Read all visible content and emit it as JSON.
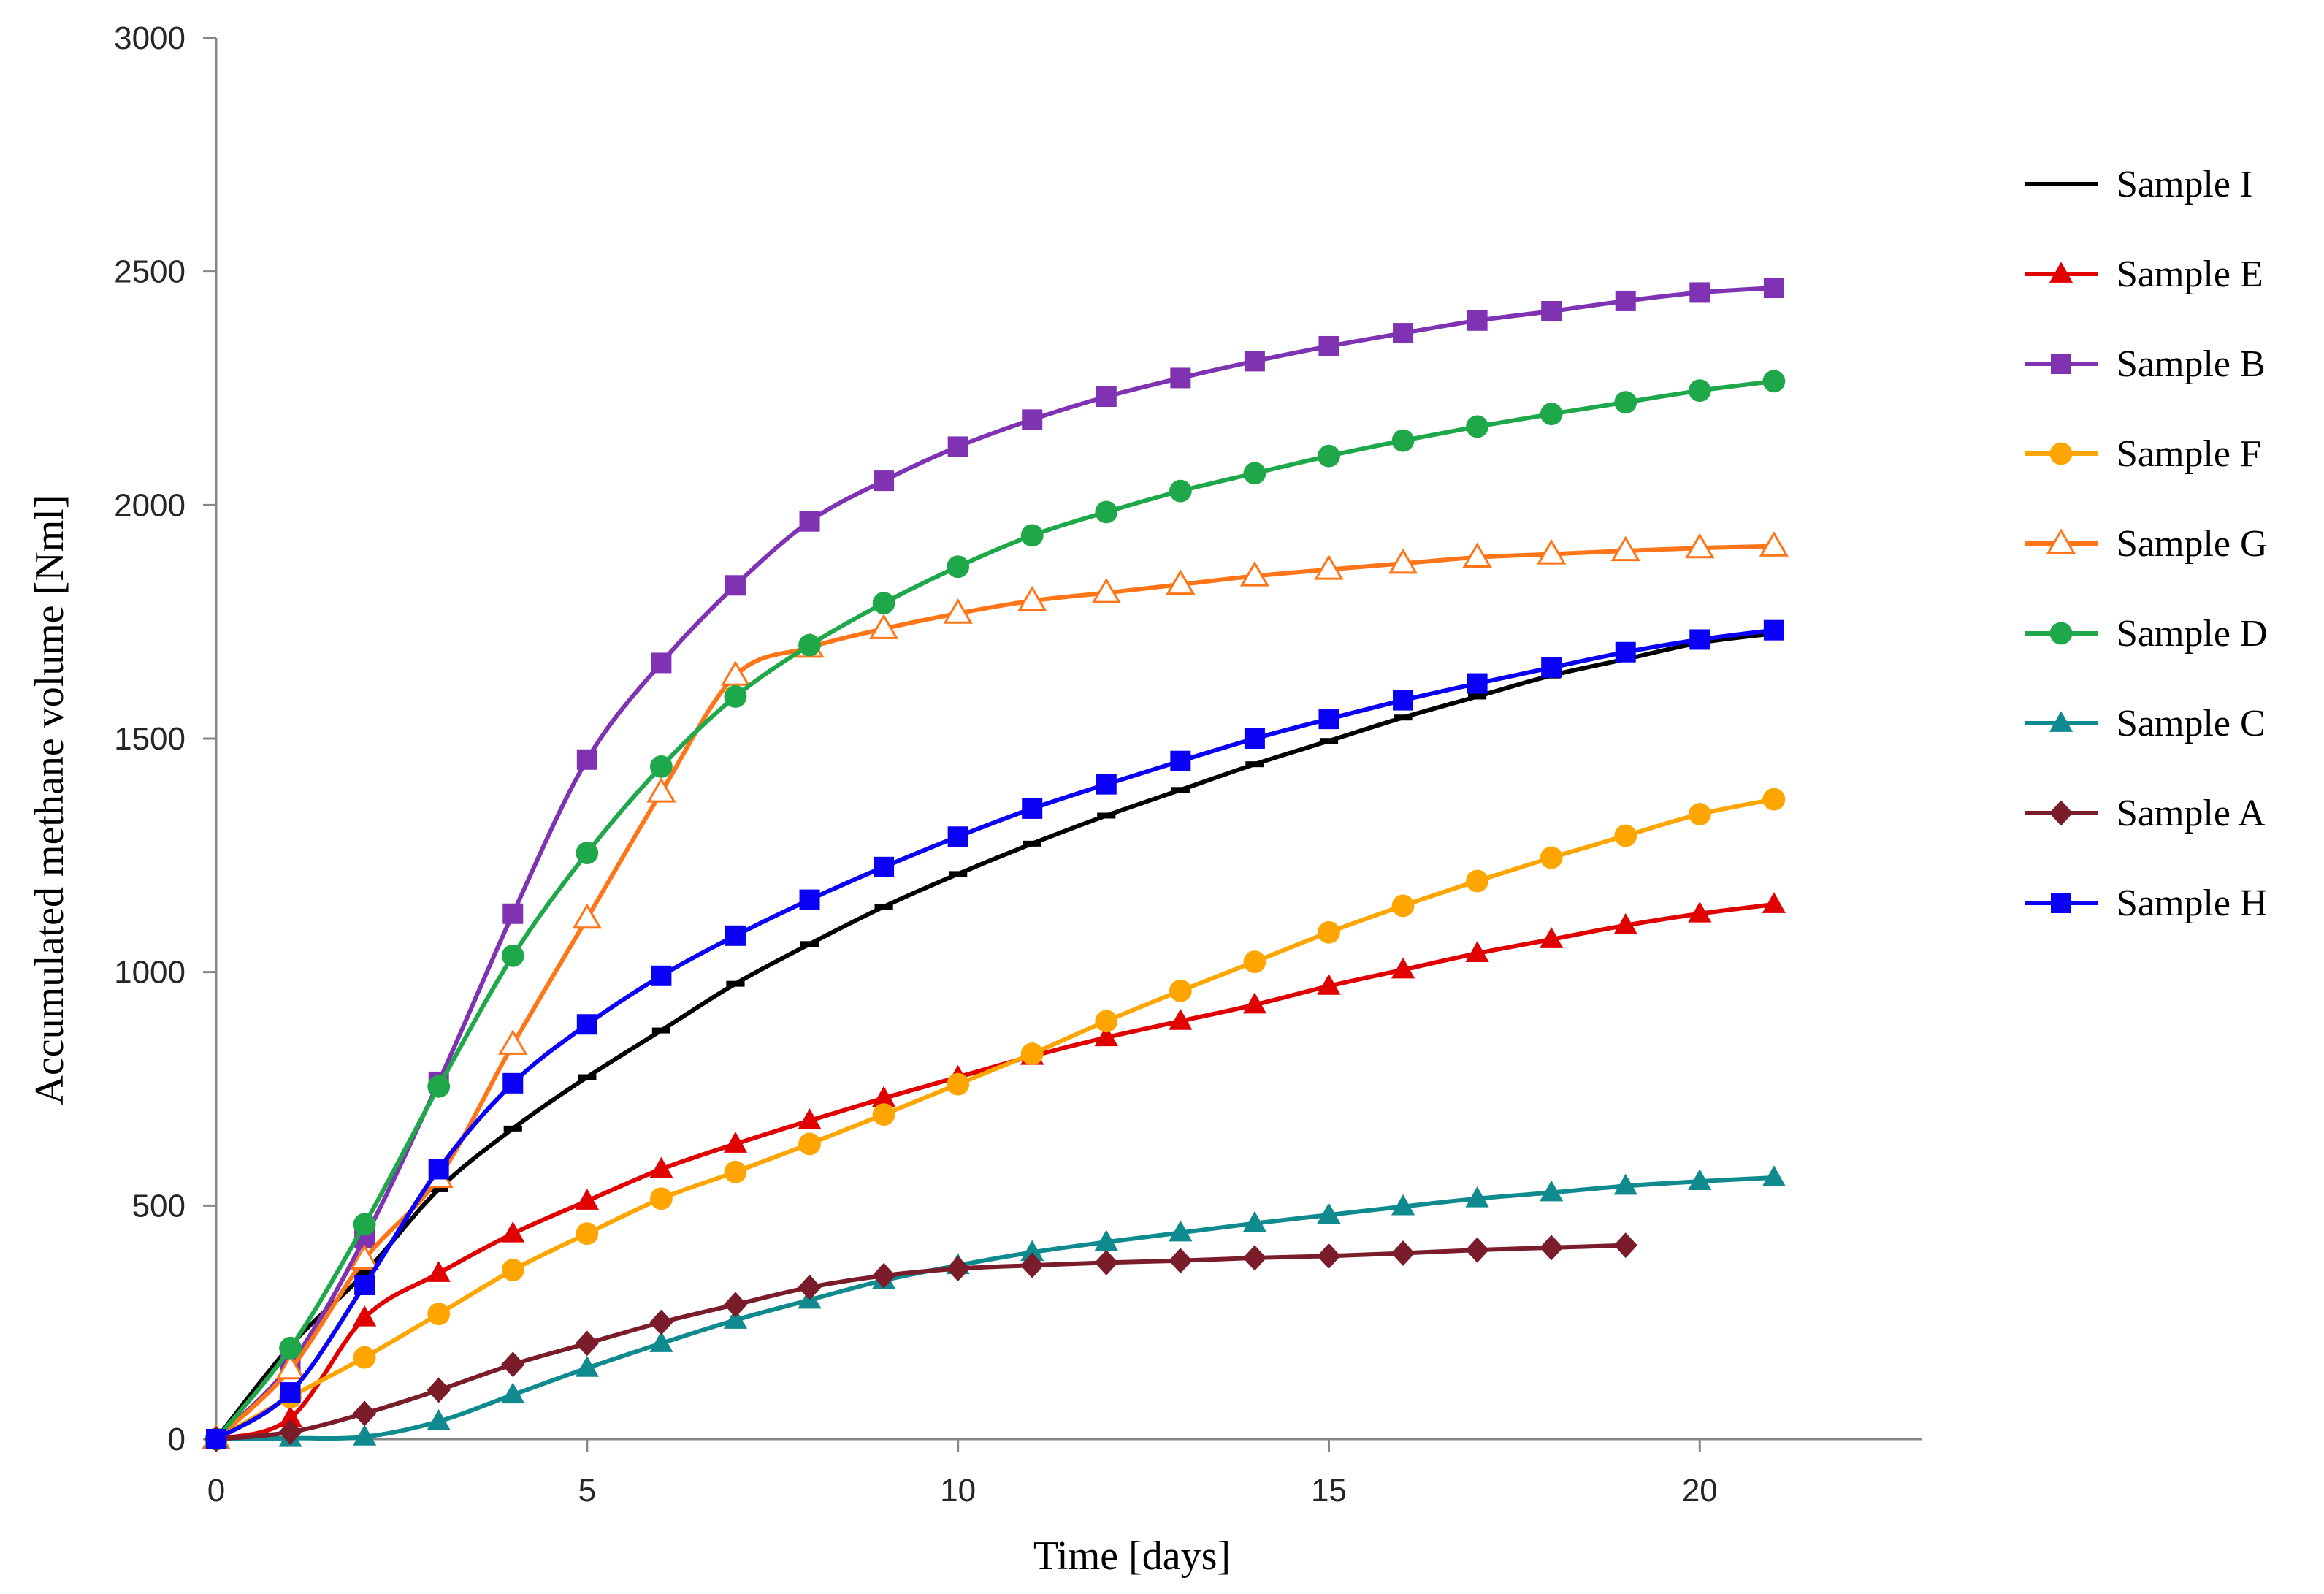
{
  "chart_data": {
    "type": "line",
    "title": "",
    "xlabel": "Time [days]",
    "ylabel": "Accumulated methane volume [Nml]",
    "xlim": [
      0,
      23
    ],
    "ylim": [
      0,
      3000
    ],
    "xticks": [
      0,
      5,
      10,
      15,
      20
    ],
    "yticks": [
      0,
      500,
      1000,
      1500,
      2000,
      2500,
      3000
    ],
    "grid": false,
    "legend_position": "right",
    "series": [
      {
        "name": "Sample I",
        "color": "#000000",
        "marker": "dash",
        "x": [
          0,
          1,
          2,
          3,
          4,
          5,
          6,
          7,
          8,
          9,
          10,
          11,
          12,
          13,
          14,
          15,
          16,
          17,
          18,
          19,
          20,
          21
        ],
        "values": [
          0,
          200,
          355,
          535,
          665,
          775,
          875,
          975,
          1060,
          1140,
          1210,
          1275,
          1335,
          1390,
          1445,
          1495,
          1545,
          1590,
          1635,
          1670,
          1705,
          1725
        ]
      },
      {
        "name": "Sample E",
        "color": "#e00000",
        "marker": "triangle",
        "x": [
          0,
          1,
          2,
          3,
          4,
          5,
          6,
          7,
          8,
          9,
          10,
          11,
          12,
          13,
          14,
          15,
          16,
          17,
          18,
          19,
          20,
          21
        ],
        "values": [
          0,
          45,
          260,
          355,
          440,
          510,
          578,
          632,
          682,
          730,
          775,
          820,
          860,
          895,
          930,
          970,
          1005,
          1040,
          1070,
          1100,
          1125,
          1145
        ]
      },
      {
        "name": "Sample B",
        "color": "#7f33b2",
        "marker": "square",
        "x": [
          0,
          1,
          2,
          3,
          4,
          5,
          6,
          7,
          8,
          9,
          10,
          11,
          12,
          13,
          14,
          15,
          16,
          17,
          18,
          19,
          20,
          21
        ],
        "values": [
          0,
          160,
          430,
          765,
          1125,
          1455,
          1662,
          1828,
          1965,
          2052,
          2125,
          2183,
          2232,
          2272,
          2308,
          2340,
          2368,
          2395,
          2415,
          2437,
          2455,
          2465
        ]
      },
      {
        "name": "Sample F",
        "color": "#ffa500",
        "marker": "circle",
        "x": [
          0,
          1,
          2,
          3,
          4,
          5,
          6,
          7,
          8,
          9,
          10,
          11,
          12,
          13,
          14,
          15,
          16,
          17,
          18,
          19,
          20,
          21
        ],
        "values": [
          0,
          90,
          175,
          268,
          362,
          440,
          515,
          572,
          632,
          695,
          760,
          825,
          895,
          960,
          1022,
          1085,
          1142,
          1195,
          1245,
          1292,
          1338,
          1370
        ]
      },
      {
        "name": "Sample G",
        "color": "#ff7518",
        "marker": "open-triangle",
        "x": [
          0,
          1,
          2,
          3,
          4,
          5,
          6,
          7,
          8,
          9,
          10,
          11,
          12,
          13,
          14,
          15,
          16,
          17,
          18,
          19,
          20,
          21
        ],
        "values": [
          0,
          150,
          385,
          560,
          845,
          1115,
          1385,
          1635,
          1695,
          1735,
          1768,
          1795,
          1812,
          1830,
          1848,
          1862,
          1875,
          1888,
          1895,
          1902,
          1908,
          1912
        ]
      },
      {
        "name": "Sample D",
        "color": "#1fa84a",
        "marker": "circle",
        "x": [
          0,
          1,
          2,
          3,
          4,
          5,
          6,
          7,
          8,
          9,
          10,
          11,
          12,
          13,
          14,
          15,
          16,
          17,
          18,
          19,
          20,
          21
        ],
        "values": [
          0,
          195,
          460,
          755,
          1035,
          1255,
          1440,
          1590,
          1700,
          1790,
          1868,
          1935,
          1985,
          2030,
          2068,
          2105,
          2138,
          2168,
          2195,
          2220,
          2245,
          2265
        ]
      },
      {
        "name": "Sample C",
        "color": "#0f8a8e",
        "marker": "triangle",
        "x": [
          0,
          1,
          2,
          3,
          4,
          5,
          6,
          7,
          8,
          9,
          10,
          11,
          12,
          13,
          14,
          15,
          16,
          17,
          18,
          19,
          20,
          21
        ],
        "values": [
          0,
          2,
          5,
          38,
          95,
          152,
          205,
          255,
          298,
          340,
          372,
          400,
          422,
          442,
          462,
          480,
          498,
          515,
          528,
          542,
          552,
          560
        ]
      },
      {
        "name": "Sample A",
        "color": "#7b1c2a",
        "marker": "diamond",
        "x": [
          0,
          1,
          2,
          3,
          4,
          5,
          6,
          7,
          8,
          9,
          10,
          11,
          12,
          13,
          14,
          15,
          16,
          17,
          18,
          19
        ],
        "values": [
          0,
          15,
          55,
          105,
          160,
          205,
          250,
          288,
          325,
          350,
          365,
          372,
          378,
          382,
          388,
          392,
          398,
          405,
          410,
          415
        ]
      },
      {
        "name": "Sample H",
        "color": "#0a00f5",
        "marker": "square",
        "x": [
          0,
          1,
          2,
          3,
          4,
          5,
          6,
          7,
          8,
          9,
          10,
          11,
          12,
          13,
          14,
          15,
          16,
          17,
          18,
          19,
          20,
          21
        ],
        "values": [
          0,
          100,
          330,
          578,
          762,
          888,
          992,
          1078,
          1155,
          1225,
          1290,
          1350,
          1402,
          1452,
          1500,
          1542,
          1582,
          1618,
          1652,
          1685,
          1712,
          1732
        ]
      }
    ]
  }
}
